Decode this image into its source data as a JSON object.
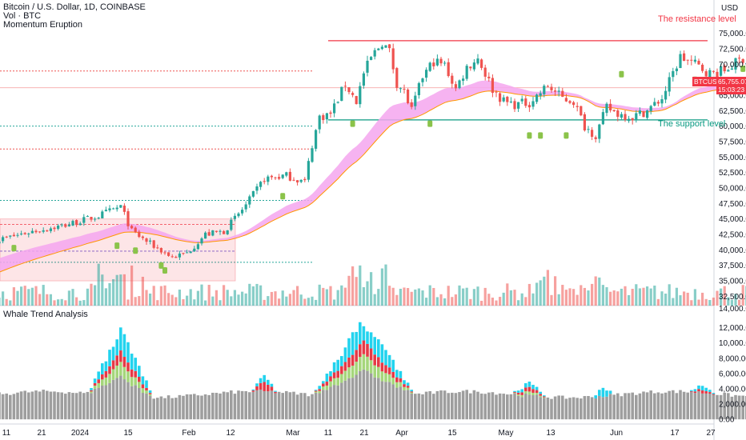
{
  "header": {
    "title": "Bitcoin / U.S. Dollar, 1D, COINBASE",
    "vol_label": "Vol · BTC",
    "indicator_label": "Momentum Eruption",
    "currency": "USD",
    "lower_pane_title": "Whale Trend Analysis"
  },
  "price_tag": {
    "symbol": "BTCUSD",
    "price": "65,755.07",
    "countdown": "15:03:23"
  },
  "colors": {
    "up": "#26a69a",
    "down": "#ef5350",
    "band": "#f5a6ef",
    "resistance": "#f23645",
    "support": "#089981",
    "bars_gray": "#9e9e9e",
    "bars_cyan": "#22d3ee",
    "bars_red": "#e63946",
    "bars_green": "#a5d67a"
  },
  "chart_data": [
    {
      "type": "candlestick",
      "title": "Bitcoin / U.S. Dollar, 1D, COINBASE",
      "x_tick_labels": [
        "11",
        "21",
        "2024",
        "15",
        "Feb",
        "12",
        "Mar",
        "11",
        "21",
        "Apr",
        "15",
        "May",
        "13",
        "Jun",
        "17",
        "27"
      ],
      "y_tick_labels": [
        "75,000.00",
        "72,500.00",
        "70,000.00",
        "67,500.00",
        "65,000.00",
        "62,500.00",
        "60,000.00",
        "57,500.00",
        "55,000.00",
        "52,500.00",
        "50,000.00",
        "47,500.00",
        "45,000.00",
        "42,500.00",
        "40,000.00",
        "37,500.00",
        "35,000.00",
        "32,500.00"
      ],
      "y_range": [
        31000,
        76500
      ],
      "last_price": 65755.07,
      "resistance_level": 73800,
      "support_level": 61000,
      "annotations": [
        "The resistance level",
        "The support level"
      ],
      "price_path": {
        "dates": [
          "Dec 11",
          "Dec 21",
          "Jan 1",
          "Jan 11",
          "Jan 15",
          "Jan 23",
          "Feb 1",
          "Feb 12",
          "Feb 28",
          "Mar 5",
          "Mar 11",
          "Mar 14",
          "Mar 20",
          "Apr 1",
          "Apr 13",
          "Apr 15",
          "Apr 20",
          "May 1",
          "May 13",
          "May 20",
          "Jun 7",
          "Jun 17"
        ],
        "close": [
          41500,
          43000,
          44000,
          46500,
          42500,
          39500,
          42500,
          48500,
          62000,
          63500,
          71500,
          73500,
          62500,
          70000,
          64000,
          63000,
          65000,
          57500,
          62800,
          71500,
          71000,
          65755
        ]
      }
    },
    {
      "type": "bar",
      "title": "Vol · BTC",
      "y_tick_labels": [
        "14,000.00"
      ]
    },
    {
      "type": "stacked_bar",
      "title": "Whale Trend Analysis",
      "y_tick_labels": [
        "12,000.00",
        "10,000.00",
        "8,000.00",
        "6,000.00",
        "4,000.00",
        "2,000.00",
        "0.00"
      ],
      "y_range": [
        -400,
        13000
      ]
    }
  ]
}
